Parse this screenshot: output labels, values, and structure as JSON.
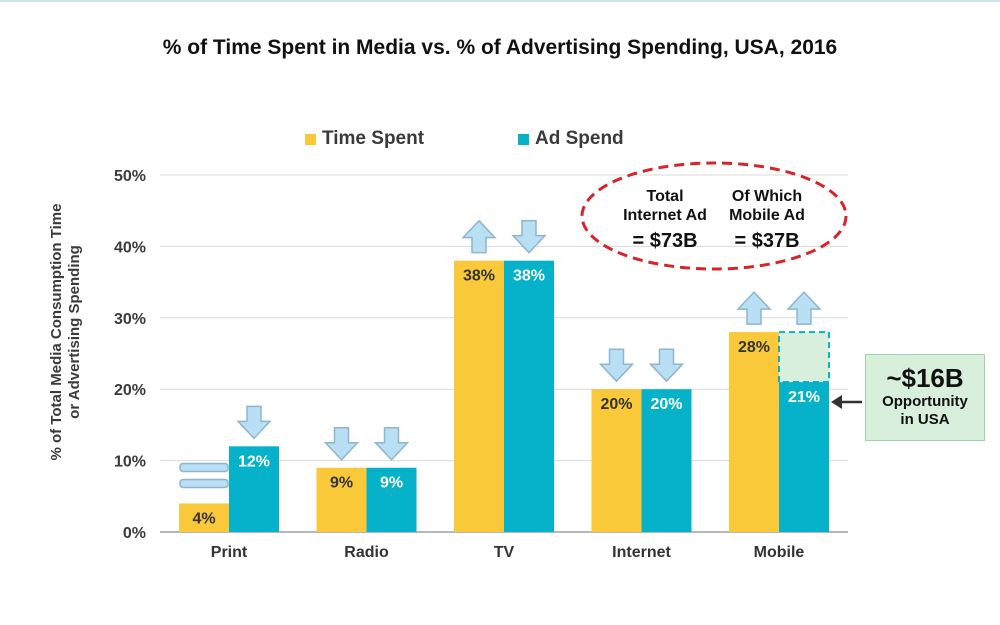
{
  "chart_data": {
    "type": "bar",
    "title": "% of Time Spent in Media vs. % of Advertising Spending, USA, 2016",
    "ylabel_line1": "% of Total Media Consumption Time",
    "ylabel_line2": "or Advertising Spending",
    "xlabel": "",
    "categories": [
      "Print",
      "Radio",
      "TV",
      "Internet",
      "Mobile"
    ],
    "series": [
      {
        "name": "Time Spent",
        "color": "#f9c93a",
        "values": [
          4,
          9,
          38,
          20,
          28
        ],
        "labels": [
          "4%",
          "9%",
          "38%",
          "20%",
          "28%"
        ]
      },
      {
        "name": "Ad Spend",
        "color": "#06b2c9",
        "values": [
          12,
          9,
          38,
          20,
          21
        ],
        "labels": [
          "12%",
          "9%",
          "38%",
          "20%",
          "21%"
        ]
      }
    ],
    "ylim": [
      0,
      50
    ],
    "yticks": [
      0,
      10,
      20,
      30,
      40,
      50
    ],
    "ytick_labels": [
      "0%",
      "10%",
      "20%",
      "30%",
      "40%",
      "50%"
    ],
    "grid": true,
    "legend_position": "top",
    "arrows": [
      {
        "category": "Print",
        "series": "Time Spent",
        "direction": "equal"
      },
      {
        "category": "Print",
        "series": "Ad Spend",
        "direction": "down"
      },
      {
        "category": "Radio",
        "series": "Time Spent",
        "direction": "down"
      },
      {
        "category": "Radio",
        "series": "Ad Spend",
        "direction": "down"
      },
      {
        "category": "TV",
        "series": "Time Spent",
        "direction": "up"
      },
      {
        "category": "TV",
        "series": "Ad Spend",
        "direction": "down"
      },
      {
        "category": "Internet",
        "series": "Time Spent",
        "direction": "down"
      },
      {
        "category": "Internet",
        "series": "Ad Spend",
        "direction": "down"
      },
      {
        "category": "Mobile",
        "series": "Time Spent",
        "direction": "up"
      },
      {
        "category": "Mobile",
        "series": "Ad Spend",
        "direction": "up"
      }
    ],
    "mobile_gap": {
      "from": 21,
      "to": 28,
      "fill": "#d8efdc",
      "stroke": "#06b2c9"
    },
    "ellipse_note": {
      "col1_line1": "Total",
      "col1_line2": "Internet Ad",
      "col1_line3": "= $73B",
      "col2_line1": "Of Which",
      "col2_line2": "Mobile Ad",
      "col2_line3": "= $37B",
      "stroke": "#d9232a"
    },
    "callout": {
      "big": "~$16B",
      "line1": "Opportunity",
      "line2": "in USA"
    },
    "arrow_fill": "#b9dff5",
    "arrow_stroke": "#8fb5cf"
  }
}
